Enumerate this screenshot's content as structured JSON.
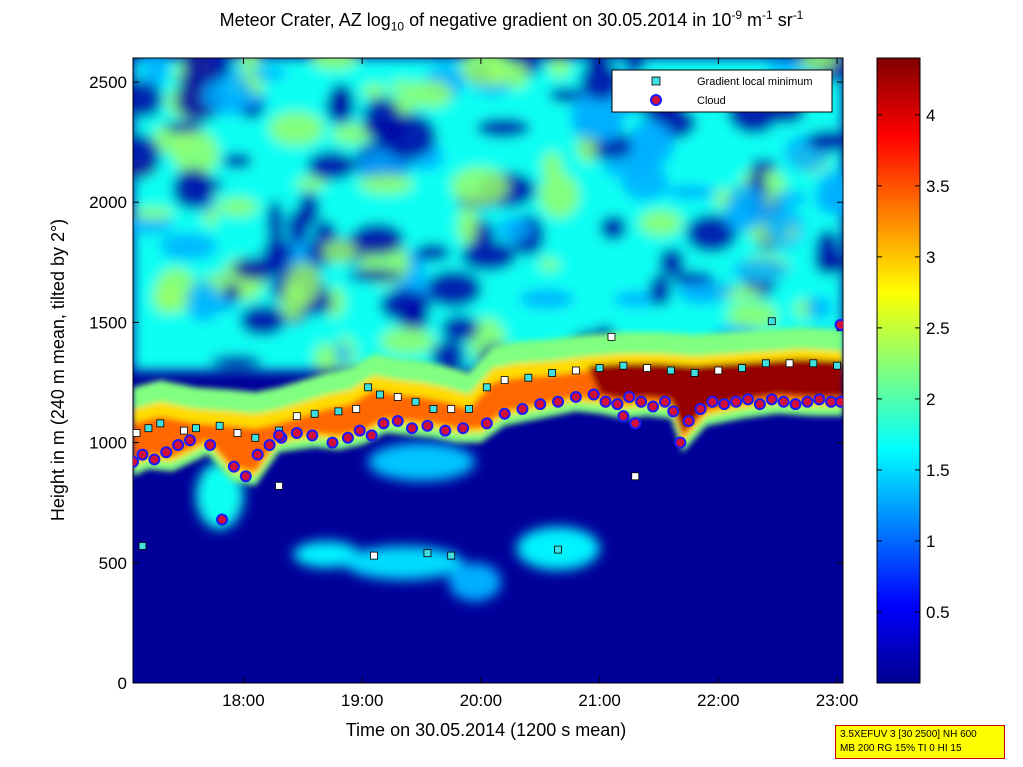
{
  "chart_data": {
    "type": "heatmap",
    "title": {
      "part1": "Meteor Crater, AZ log",
      "sub1": "10",
      "part2": " of negative gradient on 30.05.2014 in 10",
      "sup1": "-9",
      "part3": " m",
      "sup2": "-1",
      "part4": " sr",
      "sup3": "-1"
    },
    "xlabel": "Time on 30.05.2014 (1200 s mean)",
    "ylabel": "Height in m (240 m mean, tilted by 2°)",
    "xlim": [
      17.07,
      23.05
    ],
    "ylim": [
      0,
      2600
    ],
    "x_ticks": [
      {
        "value": 18,
        "label": "18:00"
      },
      {
        "value": 19,
        "label": "19:00"
      },
      {
        "value": 20,
        "label": "20:00"
      },
      {
        "value": 21,
        "label": "21:00"
      },
      {
        "value": 22,
        "label": "22:00"
      },
      {
        "value": 23,
        "label": "23:00"
      }
    ],
    "y_ticks": [
      {
        "value": 0,
        "label": "0"
      },
      {
        "value": 500,
        "label": "500"
      },
      {
        "value": 1000,
        "label": "1000"
      },
      {
        "value": 1500,
        "label": "1500"
      },
      {
        "value": 2000,
        "label": "2000"
      },
      {
        "value": 2500,
        "label": "2500"
      }
    ],
    "colorbar": {
      "range": [
        0,
        4.4
      ],
      "colormap": "jet",
      "ticks": [
        {
          "value": 0.5,
          "label": "0.5"
        },
        {
          "value": 1,
          "label": "1"
        },
        {
          "value": 1.5,
          "label": "1.5"
        },
        {
          "value": 2,
          "label": "2"
        },
        {
          "value": 2.5,
          "label": "2.5"
        },
        {
          "value": 3,
          "label": "3"
        },
        {
          "value": 3.5,
          "label": "3.5"
        },
        {
          "value": 4,
          "label": "4"
        }
      ]
    },
    "legend": {
      "placement": "top-right",
      "entries": [
        {
          "label": "Gradient local minimum",
          "marker": "square",
          "color": "#40e0e0"
        },
        {
          "label": "Cloud",
          "marker": "circle",
          "color": "#d0103a"
        }
      ]
    },
    "layers": {
      "background_value": 0.05,
      "upper_noise": {
        "y_from": 1300,
        "y_to": 2600,
        "mean_value": 1.7
      },
      "boundary_layer_top": [
        [
          17.07,
          1080
        ],
        [
          17.3,
          1110
        ],
        [
          17.6,
          1080
        ],
        [
          17.9,
          1070
        ],
        [
          18.1,
          1060
        ],
        [
          18.3,
          1080
        ],
        [
          18.5,
          1110
        ],
        [
          18.7,
          1140
        ],
        [
          18.9,
          1160
        ],
        [
          19.1,
          1220
        ],
        [
          19.3,
          1200
        ],
        [
          19.5,
          1190
        ],
        [
          19.7,
          1170
        ],
        [
          19.9,
          1140
        ],
        [
          20.1,
          1250
        ],
        [
          20.3,
          1270
        ],
        [
          20.6,
          1280
        ],
        [
          20.9,
          1300
        ],
        [
          21.2,
          1310
        ],
        [
          21.5,
          1310
        ],
        [
          21.8,
          1300
        ],
        [
          22.1,
          1310
        ],
        [
          22.4,
          1320
        ],
        [
          22.7,
          1330
        ],
        [
          23.05,
          1320
        ]
      ],
      "cloud_base": [
        [
          17.07,
          920
        ],
        [
          17.2,
          950
        ],
        [
          17.4,
          940
        ],
        [
          17.7,
          1010
        ],
        [
          17.9,
          900
        ],
        [
          18.1,
          880
        ],
        [
          18.3,
          1020
        ],
        [
          18.6,
          1040
        ],
        [
          18.8,
          1030
        ],
        [
          19.0,
          1050
        ],
        [
          19.2,
          1100
        ],
        [
          19.4,
          1090
        ],
        [
          19.6,
          1080
        ],
        [
          19.8,
          1060
        ],
        [
          20.0,
          1060
        ],
        [
          20.2,
          1130
        ],
        [
          20.5,
          1160
        ],
        [
          20.8,
          1190
        ],
        [
          21.0,
          1180
        ],
        [
          21.2,
          1160
        ],
        [
          21.4,
          1170
        ],
        [
          21.6,
          1160
        ],
        [
          21.7,
          1020
        ],
        [
          21.9,
          1130
        ],
        [
          22.2,
          1160
        ],
        [
          22.5,
          1180
        ],
        [
          22.8,
          1170
        ],
        [
          23.05,
          1170
        ]
      ],
      "dark_red_cap": {
        "x_from": 20.9,
        "x_to": 23.05,
        "value": 4.3
      },
      "low_plumes": [
        {
          "x": 18.7,
          "y": 535,
          "rx": 0.28,
          "ry": 55,
          "value": 1.6
        },
        {
          "x": 19.35,
          "y": 500,
          "rx": 0.5,
          "ry": 70,
          "value": 1.5
        },
        {
          "x": 19.95,
          "y": 420,
          "rx": 0.22,
          "ry": 80,
          "value": 1.3
        },
        {
          "x": 20.65,
          "y": 560,
          "rx": 0.35,
          "ry": 90,
          "value": 1.6
        },
        {
          "x": 17.8,
          "y": 780,
          "rx": 0.2,
          "ry": 140,
          "value": 1.7
        },
        {
          "x": 19.5,
          "y": 920,
          "rx": 0.45,
          "ry": 80,
          "value": 1.4
        }
      ],
      "gradient_minima": [
        [
          17.1,
          1040
        ],
        [
          17.2,
          1060
        ],
        [
          17.3,
          1080
        ],
        [
          17.5,
          1050
        ],
        [
          17.6,
          1060
        ],
        [
          17.8,
          1070
        ],
        [
          17.95,
          1040
        ],
        [
          18.1,
          1020
        ],
        [
          18.3,
          1050
        ],
        [
          18.45,
          1110
        ],
        [
          18.6,
          1120
        ],
        [
          18.8,
          1130
        ],
        [
          18.95,
          1140
        ],
        [
          19.05,
          1230
        ],
        [
          19.15,
          1200
        ],
        [
          19.3,
          1190
        ],
        [
          19.45,
          1170
        ],
        [
          19.6,
          1140
        ],
        [
          19.75,
          1140
        ],
        [
          19.9,
          1140
        ],
        [
          20.05,
          1230
        ],
        [
          20.2,
          1260
        ],
        [
          20.4,
          1270
        ],
        [
          20.6,
          1290
        ],
        [
          20.8,
          1300
        ],
        [
          21.0,
          1310
        ],
        [
          21.2,
          1320
        ],
        [
          21.4,
          1310
        ],
        [
          21.6,
          1300
        ],
        [
          21.8,
          1290
        ],
        [
          22.0,
          1300
        ],
        [
          22.2,
          1310
        ],
        [
          22.4,
          1330
        ],
        [
          22.6,
          1330
        ],
        [
          22.8,
          1330
        ],
        [
          23.0,
          1320
        ],
        [
          18.3,
          820
        ],
        [
          19.55,
          540
        ],
        [
          19.75,
          530
        ],
        [
          19.1,
          530
        ],
        [
          20.65,
          555
        ],
        [
          17.15,
          570
        ],
        [
          21.3,
          860
        ],
        [
          22.45,
          1505
        ],
        [
          23.03,
          1480
        ],
        [
          21.1,
          1440
        ]
      ],
      "clouds": [
        [
          17.07,
          920
        ],
        [
          17.15,
          950
        ],
        [
          17.25,
          930
        ],
        [
          17.35,
          960
        ],
        [
          17.45,
          990
        ],
        [
          17.55,
          1010
        ],
        [
          17.72,
          990
        ],
        [
          17.82,
          680
        ],
        [
          17.92,
          900
        ],
        [
          18.02,
          860
        ],
        [
          18.12,
          950
        ],
        [
          18.22,
          990
        ],
        [
          18.32,
          1020
        ],
        [
          18.45,
          1040
        ],
        [
          18.58,
          1030
        ],
        [
          18.75,
          1000
        ],
        [
          18.88,
          1020
        ],
        [
          18.98,
          1050
        ],
        [
          19.08,
          1030
        ],
        [
          19.18,
          1080
        ],
        [
          19.3,
          1090
        ],
        [
          19.42,
          1060
        ],
        [
          19.55,
          1070
        ],
        [
          19.7,
          1050
        ],
        [
          19.85,
          1060
        ],
        [
          20.05,
          1080
        ],
        [
          20.2,
          1120
        ],
        [
          20.35,
          1140
        ],
        [
          20.5,
          1160
        ],
        [
          20.65,
          1170
        ],
        [
          20.8,
          1190
        ],
        [
          20.95,
          1200
        ],
        [
          21.05,
          1170
        ],
        [
          21.15,
          1160
        ],
        [
          21.25,
          1190
        ],
        [
          21.35,
          1170
        ],
        [
          21.45,
          1150
        ],
        [
          21.55,
          1170
        ],
        [
          21.62,
          1130
        ],
        [
          21.68,
          1000
        ],
        [
          21.75,
          1090
        ],
        [
          21.85,
          1140
        ],
        [
          21.95,
          1170
        ],
        [
          22.05,
          1160
        ],
        [
          22.15,
          1170
        ],
        [
          22.25,
          1180
        ],
        [
          22.35,
          1160
        ],
        [
          22.45,
          1180
        ],
        [
          22.55,
          1170
        ],
        [
          22.65,
          1160
        ],
        [
          22.75,
          1170
        ],
        [
          22.85,
          1180
        ],
        [
          22.95,
          1170
        ],
        [
          23.03,
          1170
        ],
        [
          23.03,
          1490
        ],
        [
          21.3,
          1080
        ],
        [
          21.2,
          1110
        ],
        [
          18.3,
          1030
        ]
      ]
    }
  },
  "note": {
    "line1": "3.5XEFUV 3 [30 2500] NH 600",
    "line2": "MB 200 RG 15% TI 0 HI 15"
  }
}
